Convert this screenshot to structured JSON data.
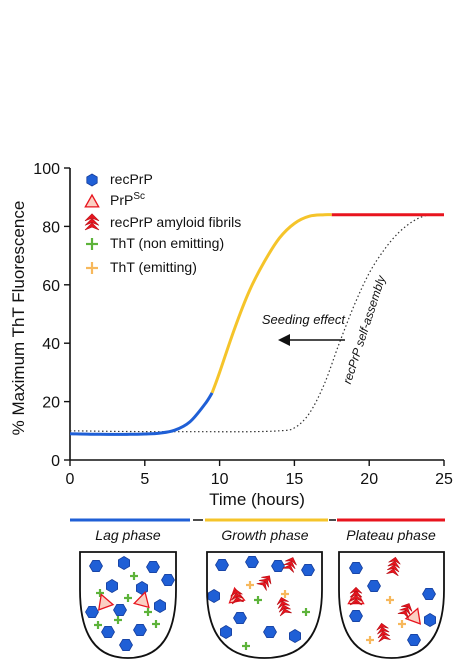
{
  "chart_data": {
    "type": "line",
    "xlabel": "Time (hours)",
    "ylabel": "% Maximum ThT Fluorescence",
    "xlim": [
      0,
      25
    ],
    "ylim": [
      0,
      100
    ],
    "xticks": [
      "0",
      "5",
      "10",
      "15",
      "20",
      "25"
    ],
    "yticks": [
      "0",
      "20",
      "40",
      "60",
      "80",
      "100"
    ],
    "grid": false,
    "series": [
      {
        "style": "solid, colored by phase",
        "x": [
          0,
          2,
          4,
          5,
          6,
          7,
          8,
          9,
          9.5,
          10,
          11,
          12,
          13,
          14,
          15,
          16,
          17,
          17.5,
          19,
          21,
          23,
          25
        ],
        "y": [
          9,
          8.8,
          8.8,
          8.9,
          9.2,
          10.2,
          13,
          19,
          23,
          30,
          45,
          58,
          68,
          76,
          81,
          83.5,
          84,
          84,
          84,
          84,
          84,
          84
        ],
        "phase_segments": [
          {
            "phase": "lag",
            "x_range": [
              0,
              9.5
            ],
            "color": "#1f5fd6"
          },
          {
            "phase": "growth",
            "x_range": [
              9.5,
              17.5
            ],
            "color": "#f5c42a"
          },
          {
            "phase": "plateau",
            "x_range": [
              17.5,
              25
            ],
            "color": "#e8141e"
          }
        ]
      },
      {
        "style": "dotted",
        "color": "#333333",
        "x": [
          0,
          3,
          6,
          9,
          12,
          14,
          15,
          16,
          17,
          18,
          19,
          20,
          21,
          22,
          23,
          24,
          25
        ],
        "y": [
          10,
          9.8,
          9.7,
          9.7,
          9.7,
          10,
          11,
          16,
          26,
          40,
          53,
          64,
          72,
          78,
          82,
          84,
          84
        ]
      }
    ],
    "annotations": [
      {
        "text": "Seeding effect",
        "arrow": "left",
        "x": 12.5,
        "y": 47
      },
      {
        "text": "recPrP self-assembly",
        "x": 20.2,
        "y": 52,
        "rotation": "along dotted curve"
      }
    ],
    "legend": {
      "placement": "top-left",
      "entries": [
        {
          "label": "recPrP",
          "marker": "blue-hexagon",
          "color": "#1f5fd6"
        },
        {
          "label": "PrP",
          "superscript": "Sc",
          "marker": "red-outline-triangle",
          "color": "#e8141e"
        },
        {
          "label": "recPrP amyloid fibrils",
          "marker": "red-stacked-chevrons",
          "color": "#e8141e"
        },
        {
          "label": "ThT (non emitting)",
          "marker": "green-cross",
          "color": "#5db33a"
        },
        {
          "label": "ThT (emitting)",
          "marker": "orange-cross",
          "color": "#f7b85c"
        }
      ]
    },
    "phases": [
      {
        "label": "Lag phase",
        "color": "#1f5fd6"
      },
      {
        "label": "Growth phase",
        "color": "#f5c42a"
      },
      {
        "label": "Plateau phase",
        "color": "#e8141e"
      }
    ]
  }
}
